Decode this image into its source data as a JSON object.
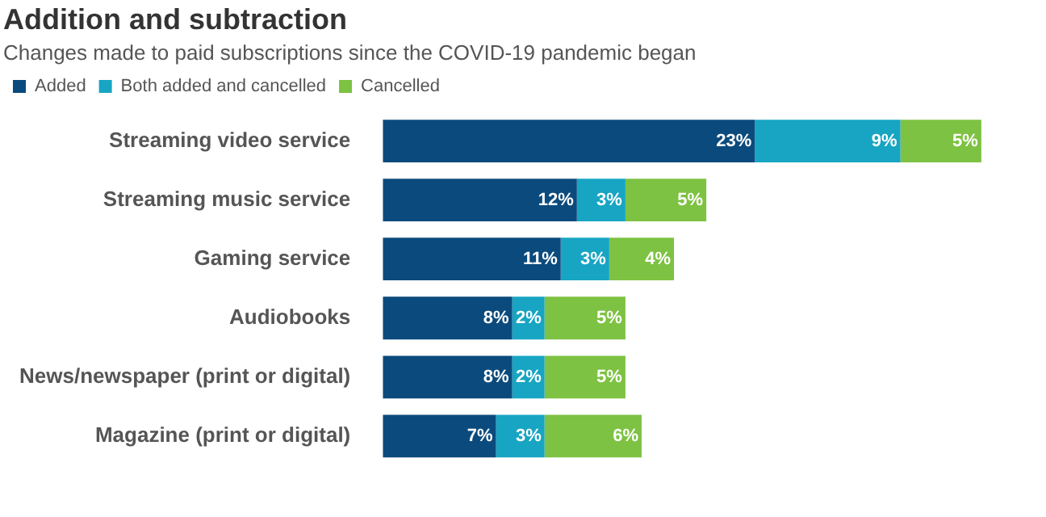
{
  "chart_data": {
    "type": "bar",
    "orientation": "horizontal",
    "stacked": true,
    "title": "Addition and subtraction",
    "subtitle": "Changes made to paid subscriptions since the COVID-19 pandemic began",
    "categories": [
      "Streaming video service",
      "Streaming music service",
      "Gaming service",
      "Audiobooks",
      "News/newspaper (print or digital)",
      "Magazine (print or digital)"
    ],
    "series": [
      {
        "name": "Added",
        "color": "#0b4a7c",
        "values": [
          23,
          12,
          11,
          8,
          8,
          7
        ],
        "value_labels": [
          "23%",
          "12%",
          "11%",
          "8%",
          "8%",
          "7%"
        ]
      },
      {
        "name": "Both added and cancelled",
        "color": "#17a5c3",
        "values": [
          9,
          3,
          3,
          2,
          2,
          3
        ],
        "value_labels": [
          "9%",
          "3%",
          "3%",
          "2%",
          "2%",
          "3%"
        ]
      },
      {
        "name": "Cancelled",
        "color": "#7dc242",
        "values": [
          5,
          5,
          4,
          5,
          5,
          6
        ],
        "value_labels": [
          "5%",
          "5%",
          "4%",
          "5%",
          "5%",
          "6%"
        ]
      }
    ],
    "legend": "top left"
  }
}
